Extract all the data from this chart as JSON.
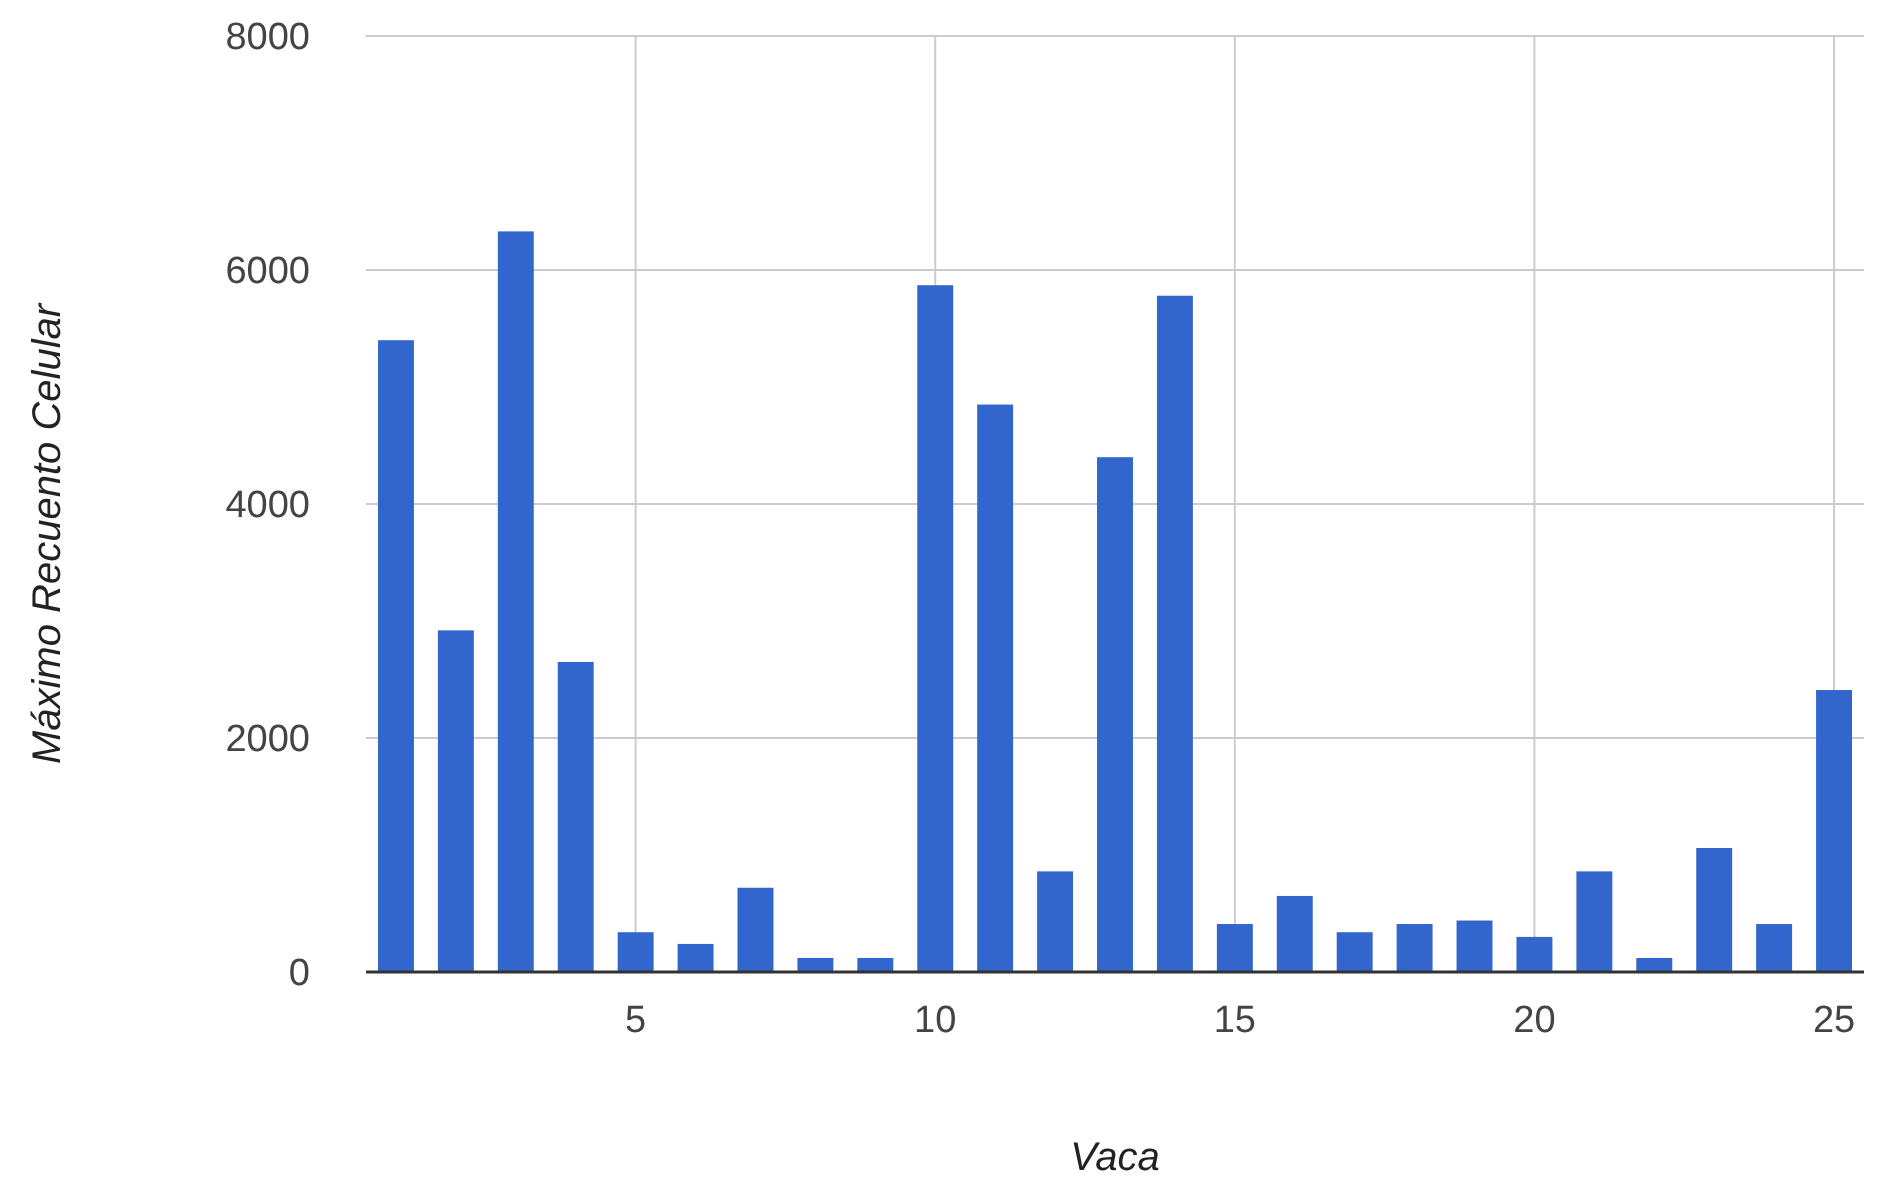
{
  "chart_data": {
    "type": "bar",
    "xlabel": "Vaca",
    "ylabel": "Máximo Recuento Celular",
    "x": [
      1,
      2,
      3,
      4,
      5,
      6,
      7,
      8,
      9,
      10,
      11,
      12,
      13,
      14,
      15,
      16,
      17,
      18,
      19,
      20,
      21,
      22,
      23,
      24,
      25
    ],
    "values": [
      5400,
      2920,
      6330,
      2650,
      340,
      240,
      720,
      120,
      120,
      5870,
      4850,
      860,
      4400,
      5780,
      410,
      650,
      340,
      410,
      440,
      300,
      860,
      120,
      1060,
      410,
      2410
    ],
    "color": "#3366cc",
    "xlim": [
      0.5,
      25.5
    ],
    "xticks": [
      5,
      10,
      15,
      20,
      25
    ],
    "ylim": [
      0,
      8000
    ],
    "yticks": [
      0,
      2000,
      4000,
      6000,
      8000
    ],
    "grid": true
  }
}
